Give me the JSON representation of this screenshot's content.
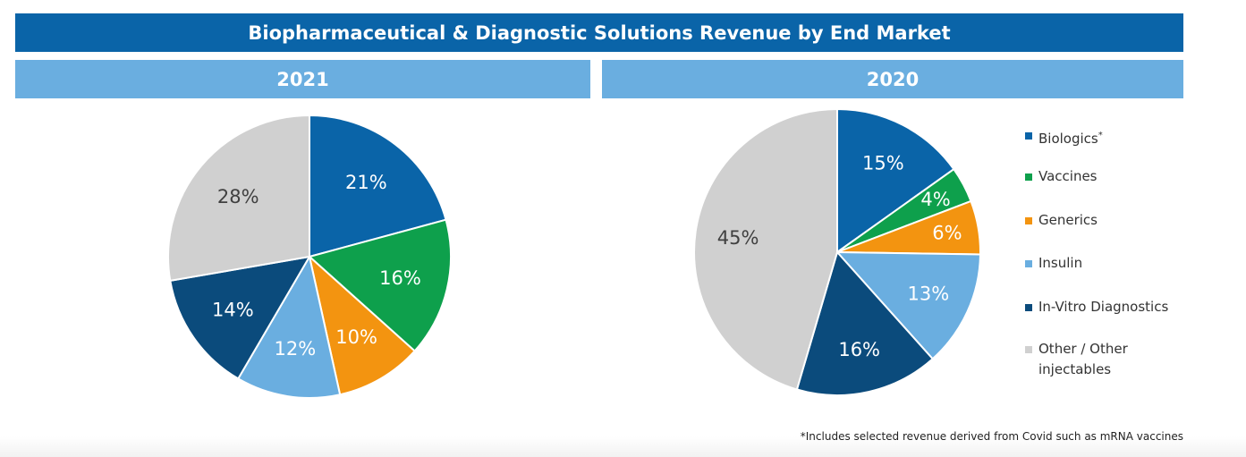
{
  "header": {
    "title": "Biopharmaceutical & Diagnostic Solutions Revenue by End Market"
  },
  "chart_data": [
    {
      "type": "pie",
      "title": "2021",
      "categories": [
        "Biologics",
        "Vaccines",
        "Generics",
        "Insulin",
        "In-Vitro Diagnostics",
        "Other / Other injectables"
      ],
      "values": [
        21,
        16,
        10,
        12,
        14,
        28
      ],
      "labels": [
        "21%",
        "16%",
        "10%",
        "12%",
        "14%",
        "28%"
      ],
      "colors": [
        "#0a64a8",
        "#0ea04c",
        "#f39410",
        "#6aaee0",
        "#0b4b7c",
        "#d0d0d0"
      ],
      "label_colors": [
        "#ffffff",
        "#ffffff",
        "#ffffff",
        "#ffffff",
        "#ffffff",
        "#404040"
      ]
    },
    {
      "type": "pie",
      "title": "2020",
      "categories": [
        "Biologics",
        "Vaccines",
        "Generics",
        "Insulin",
        "In-Vitro Diagnostics",
        "Other / Other injectables"
      ],
      "values": [
        15,
        4,
        6,
        13,
        16,
        45
      ],
      "labels": [
        "15%",
        "4%",
        "6%",
        "13%",
        "16%",
        "45%"
      ],
      "colors": [
        "#0a64a8",
        "#0ea04c",
        "#f39410",
        "#6aaee0",
        "#0b4b7c",
        "#d0d0d0"
      ],
      "label_colors": [
        "#ffffff",
        "#ffffff",
        "#ffffff",
        "#ffffff",
        "#ffffff",
        "#404040"
      ]
    }
  ],
  "legend": {
    "placement": "right",
    "items": [
      {
        "label": "Biologics",
        "sup": "*",
        "color": "#0a64a8"
      },
      {
        "label": "Vaccines",
        "sup": "",
        "color": "#0ea04c"
      },
      {
        "label": "Generics",
        "sup": "",
        "color": "#f39410"
      },
      {
        "label": "Insulin",
        "sup": "",
        "color": "#6aaee0"
      },
      {
        "label": "In-Vitro Diagnostics",
        "sup": "",
        "color": "#0b4b7c"
      },
      {
        "label": "Other / Other injectables",
        "sup": "",
        "color": "#d0d0d0"
      }
    ]
  },
  "footnote": "*Includes selected revenue derived from Covid such as mRNA vaccines"
}
